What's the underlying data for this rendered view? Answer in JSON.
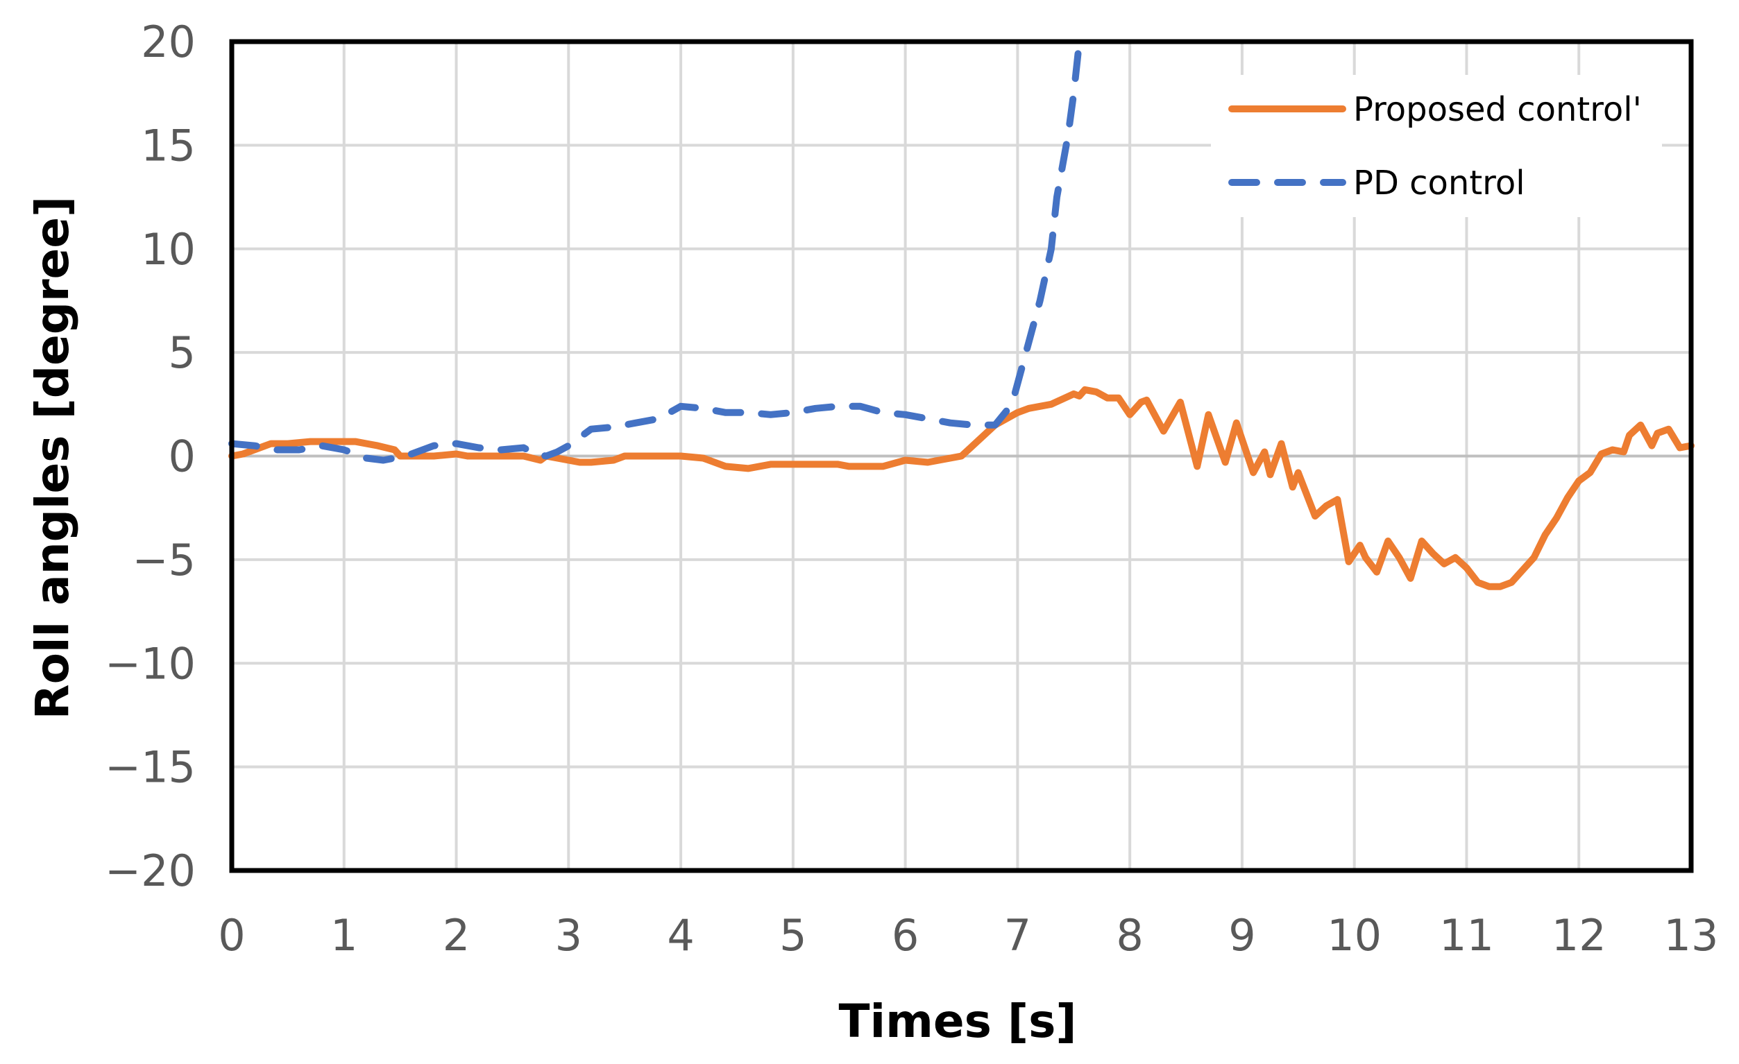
{
  "chart_data": {
    "type": "line",
    "title": "",
    "xlabel": "Times [s]",
    "ylabel": "Roll angles [degree]",
    "xlim": [
      0,
      13
    ],
    "ylim": [
      -20,
      20
    ],
    "xticks": [
      0,
      1,
      2,
      3,
      4,
      5,
      6,
      7,
      8,
      9,
      10,
      11,
      12,
      13
    ],
    "yticks": [
      20,
      15,
      10,
      5,
      0,
      -5,
      -10,
      -15,
      -20
    ],
    "ytick_labels": [
      "20",
      "15",
      "10",
      "5",
      "0",
      "−5",
      "−10",
      "−15",
      "−20"
    ],
    "grid": true,
    "legend_position": "top-right",
    "series": [
      {
        "name": "Proposed control'",
        "color": "#ED7D31",
        "style": "solid",
        "points": [
          [
            0,
            0
          ],
          [
            0.1,
            0.1
          ],
          [
            0.2,
            0.3
          ],
          [
            0.35,
            0.6
          ],
          [
            0.5,
            0.6
          ],
          [
            0.7,
            0.7
          ],
          [
            0.9,
            0.7
          ],
          [
            1.1,
            0.7
          ],
          [
            1.3,
            0.5
          ],
          [
            1.45,
            0.3
          ],
          [
            1.5,
            0
          ],
          [
            1.8,
            0
          ],
          [
            2.0,
            0.1
          ],
          [
            2.1,
            0
          ],
          [
            2.4,
            0
          ],
          [
            2.6,
            0
          ],
          [
            2.75,
            -0.2
          ],
          [
            2.8,
            0
          ],
          [
            3.0,
            -0.2
          ],
          [
            3.1,
            -0.3
          ],
          [
            3.2,
            -0.3
          ],
          [
            3.4,
            -0.2
          ],
          [
            3.5,
            0
          ],
          [
            3.8,
            0
          ],
          [
            4.0,
            0
          ],
          [
            4.2,
            -0.1
          ],
          [
            4.4,
            -0.5
          ],
          [
            4.6,
            -0.6
          ],
          [
            4.8,
            -0.4
          ],
          [
            5.0,
            -0.4
          ],
          [
            5.2,
            -0.4
          ],
          [
            5.4,
            -0.4
          ],
          [
            5.5,
            -0.5
          ],
          [
            5.8,
            -0.5
          ],
          [
            6.0,
            -0.2
          ],
          [
            6.2,
            -0.3
          ],
          [
            6.4,
            -0.1
          ],
          [
            6.5,
            0
          ],
          [
            6.6,
            0.5
          ],
          [
            6.8,
            1.5
          ],
          [
            7.0,
            2.1
          ],
          [
            7.1,
            2.3
          ],
          [
            7.3,
            2.5
          ],
          [
            7.5,
            3.0
          ],
          [
            7.55,
            2.9
          ],
          [
            7.6,
            3.2
          ],
          [
            7.7,
            3.1
          ],
          [
            7.8,
            2.8
          ],
          [
            7.9,
            2.8
          ],
          [
            8.0,
            2.0
          ],
          [
            8.1,
            2.6
          ],
          [
            8.15,
            2.7
          ],
          [
            8.3,
            1.2
          ],
          [
            8.45,
            2.6
          ],
          [
            8.6,
            -0.5
          ],
          [
            8.7,
            2.0
          ],
          [
            8.85,
            -0.3
          ],
          [
            8.95,
            1.6
          ],
          [
            9.1,
            -0.8
          ],
          [
            9.2,
            0.2
          ],
          [
            9.25,
            -0.9
          ],
          [
            9.35,
            0.6
          ],
          [
            9.45,
            -1.5
          ],
          [
            9.5,
            -0.8
          ],
          [
            9.65,
            -2.9
          ],
          [
            9.75,
            -2.4
          ],
          [
            9.85,
            -2.1
          ],
          [
            9.95,
            -5.1
          ],
          [
            10.05,
            -4.3
          ],
          [
            10.1,
            -4.9
          ],
          [
            10.2,
            -5.6
          ],
          [
            10.3,
            -4.1
          ],
          [
            10.4,
            -4.9
          ],
          [
            10.5,
            -5.9
          ],
          [
            10.6,
            -4.1
          ],
          [
            10.7,
            -4.7
          ],
          [
            10.8,
            -5.2
          ],
          [
            10.9,
            -4.9
          ],
          [
            11.0,
            -5.4
          ],
          [
            11.1,
            -6.1
          ],
          [
            11.2,
            -6.3
          ],
          [
            11.3,
            -6.3
          ],
          [
            11.4,
            -6.1
          ],
          [
            11.5,
            -5.5
          ],
          [
            11.6,
            -4.9
          ],
          [
            11.7,
            -3.8
          ],
          [
            11.8,
            -3.0
          ],
          [
            11.9,
            -2.0
          ],
          [
            12.0,
            -1.2
          ],
          [
            12.1,
            -0.8
          ],
          [
            12.2,
            0.1
          ],
          [
            12.3,
            0.3
          ],
          [
            12.4,
            0.2
          ],
          [
            12.45,
            1.0
          ],
          [
            12.55,
            1.5
          ],
          [
            12.65,
            0.5
          ],
          [
            12.7,
            1.1
          ],
          [
            12.8,
            1.3
          ],
          [
            12.9,
            0.4
          ],
          [
            13.0,
            0.5
          ]
        ]
      },
      {
        "name": "PD control",
        "color": "#4472C4",
        "style": "dashed",
        "points": [
          [
            0,
            0.6
          ],
          [
            0.2,
            0.5
          ],
          [
            0.4,
            0.3
          ],
          [
            0.6,
            0.3
          ],
          [
            0.8,
            0.5
          ],
          [
            1.0,
            0.3
          ],
          [
            1.1,
            0.1
          ],
          [
            1.2,
            -0.1
          ],
          [
            1.35,
            -0.2
          ],
          [
            1.55,
            0
          ],
          [
            1.8,
            0.5
          ],
          [
            2.0,
            0.6
          ],
          [
            2.2,
            0.4
          ],
          [
            2.4,
            0.3
          ],
          [
            2.6,
            0.4
          ],
          [
            2.7,
            0.1
          ],
          [
            2.8,
            0
          ],
          [
            2.9,
            0.2
          ],
          [
            3.0,
            0.5
          ],
          [
            3.2,
            1.3
          ],
          [
            3.4,
            1.4
          ],
          [
            3.6,
            1.6
          ],
          [
            3.8,
            1.8
          ],
          [
            4.0,
            2.4
          ],
          [
            4.2,
            2.3
          ],
          [
            4.4,
            2.1
          ],
          [
            4.6,
            2.1
          ],
          [
            4.8,
            2.0
          ],
          [
            5.0,
            2.1
          ],
          [
            5.2,
            2.3
          ],
          [
            5.4,
            2.4
          ],
          [
            5.6,
            2.4
          ],
          [
            5.8,
            2.1
          ],
          [
            6.0,
            2.0
          ],
          [
            6.2,
            1.8
          ],
          [
            6.4,
            1.6
          ],
          [
            6.6,
            1.5
          ],
          [
            6.8,
            1.5
          ],
          [
            6.95,
            2.5
          ],
          [
            7.05,
            4.5
          ],
          [
            7.2,
            7.5
          ],
          [
            7.3,
            10.0
          ],
          [
            7.35,
            12.5
          ],
          [
            7.45,
            15.5
          ],
          [
            7.5,
            17.5
          ],
          [
            7.55,
            20.0
          ]
        ]
      }
    ]
  }
}
